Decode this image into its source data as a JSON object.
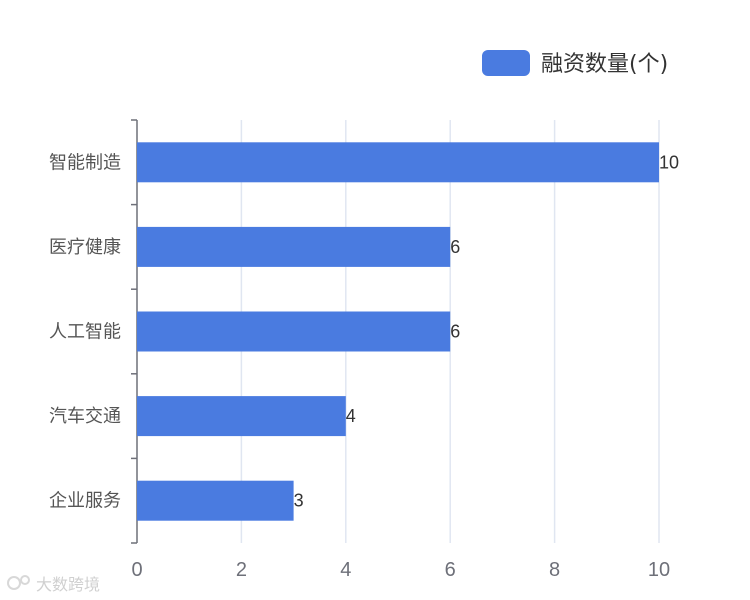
{
  "chart_data": {
    "type": "bar",
    "orientation": "horizontal",
    "categories": [
      "企业服务",
      "汽车交通",
      "人工智能",
      "医疗健康",
      "智能制造"
    ],
    "series": [
      {
        "name": "融资数量(个)",
        "values": [
          3,
          4,
          6,
          6,
          10
        ],
        "color": "#4a7be0"
      }
    ],
    "xlim": [
      0,
      10
    ],
    "x_ticks": [
      0,
      2,
      4,
      6,
      8,
      10
    ],
    "grid": "vertical",
    "legend_position": "top-right",
    "data_labels": true
  },
  "watermark": {
    "text": "大数跨境"
  }
}
